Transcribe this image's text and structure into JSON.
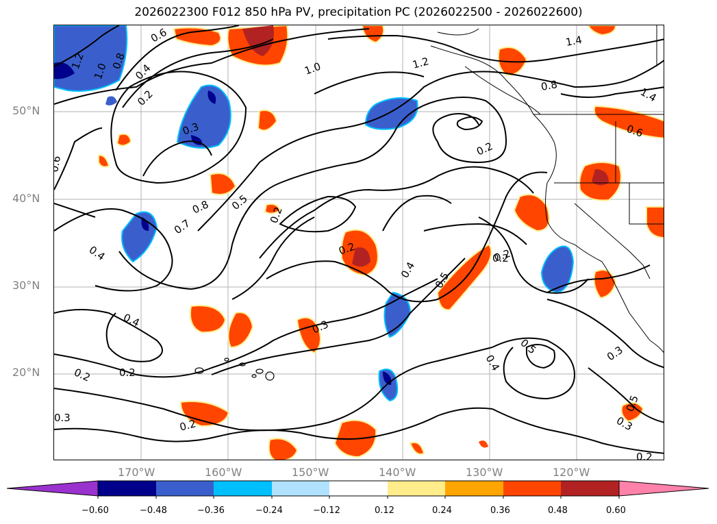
{
  "title": "2026022300 F012 850 hPa PV, precipitation PC (2026022500 - 2026022600)",
  "map": {
    "lat_labels": [
      "50°N",
      "40°N",
      "30°N",
      "20°N"
    ],
    "lon_labels": [
      "170°W",
      "160°W",
      "150°W",
      "140°W",
      "130°W",
      "120°W"
    ],
    "contour_labels": [
      "0.6",
      "1.2",
      "1.0",
      "0.8",
      "0.4",
      "0.2",
      "0.3",
      "0.6",
      "0.8",
      "0.7",
      "0.5",
      "0.2",
      "0.4",
      "0.2",
      "0.2",
      "0.4",
      "0.5",
      "0.2",
      "0.4",
      "0.3",
      "0.2",
      "0.2",
      "0.3",
      "0.2",
      "0.5",
      "0.4",
      "0.3",
      "0.3",
      "0.2",
      "0.5",
      "1.0",
      "1.2",
      "1.4",
      "0.8",
      "1.4",
      "0.6",
      "0.2"
    ],
    "contour_variable": "850 hPa PV",
    "shaded_variable": "precipitation PC"
  },
  "colorbar": {
    "ticks": [
      "−0.60",
      "−0.48",
      "−0.36",
      "−0.24",
      "−0.12",
      "0.12",
      "0.24",
      "0.36",
      "0.48",
      "0.60"
    ],
    "colors": [
      "#9a32cd",
      "#00008b",
      "#3a5fcd",
      "#00bfff",
      "#b0e2ff",
      "#ffffff",
      "#ffec8b",
      "#ffa500",
      "#ff4500",
      "#b22222",
      "#ff82ab"
    ]
  }
}
